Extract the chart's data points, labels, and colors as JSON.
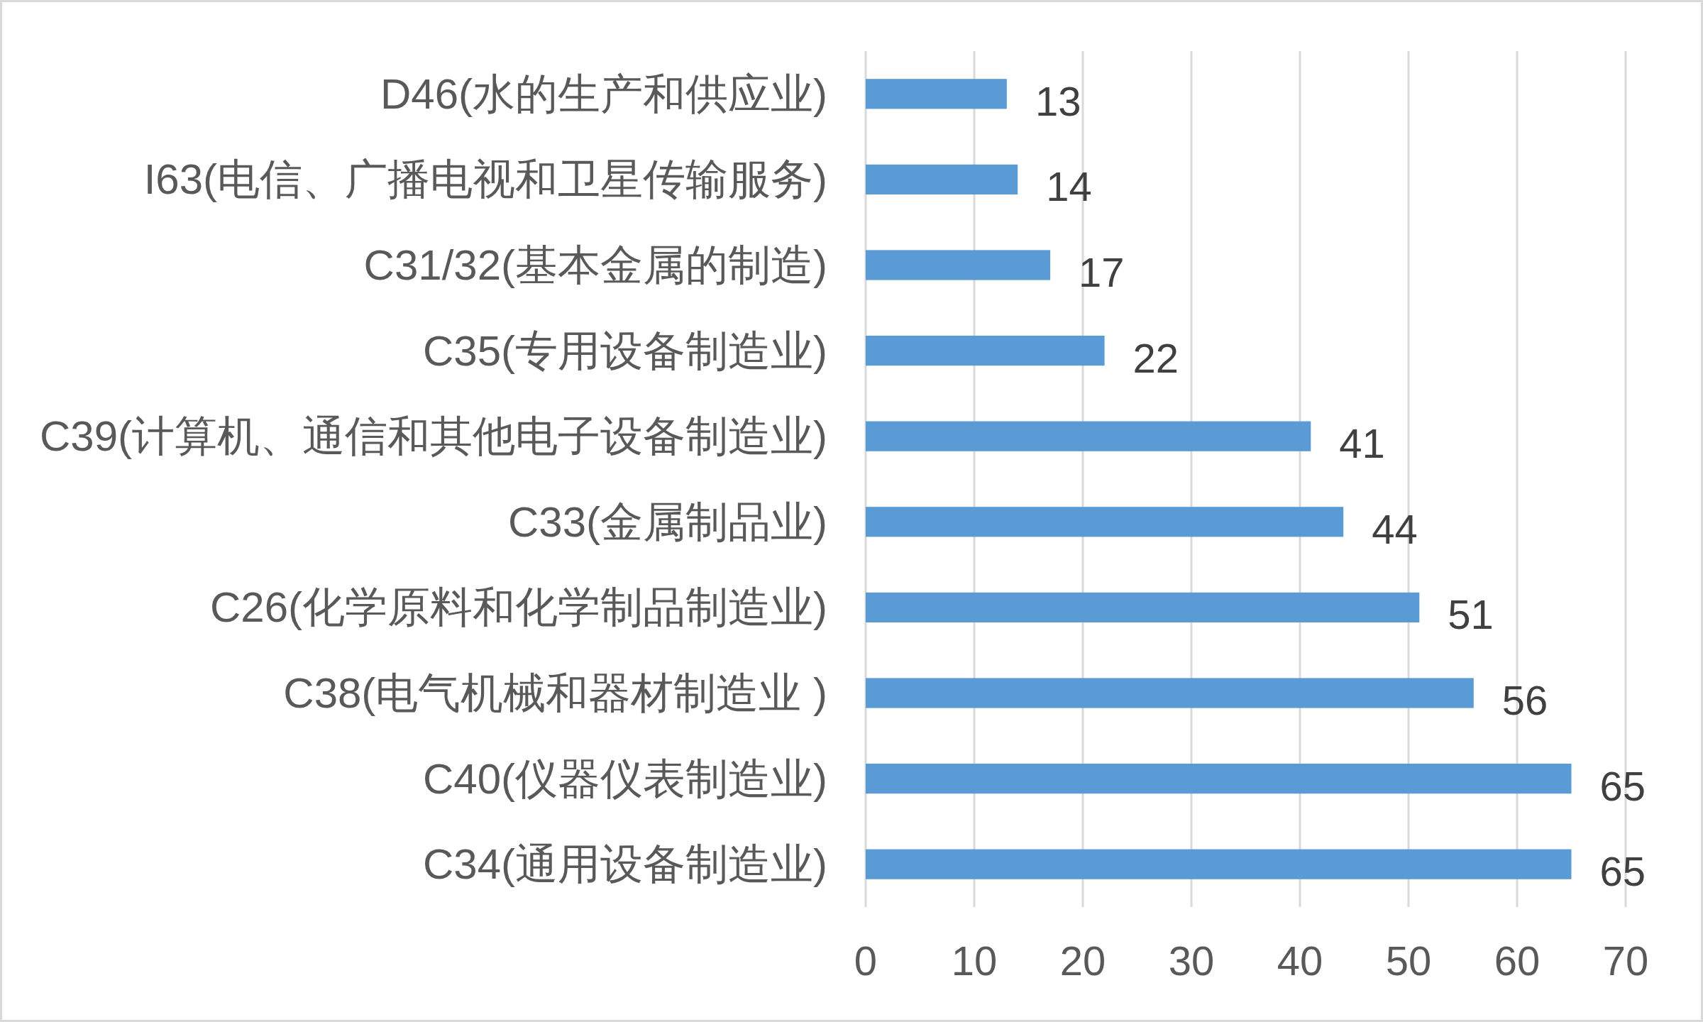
{
  "chart_data": {
    "type": "bar",
    "orientation": "horizontal",
    "categories": [
      "D46(水的生产和供应业)",
      "I63(电信、广播电视和卫星传输服务)",
      "C31/32(基本金属的制造)",
      "C35(专用设备制造业)",
      "C39(计算机、通信和其他电子设备制造业)",
      "C33(金属制品业)",
      "C26(化学原料和化学制品制造业)",
      "C38(电气机械和器材制造业 )",
      "C40(仪器仪表制造业)",
      "C34(通用设备制造业)"
    ],
    "values": [
      13,
      14,
      17,
      22,
      41,
      44,
      51,
      56,
      65,
      65
    ],
    "color": "#5b9bd5",
    "xlim": [
      0,
      70
    ],
    "xticks": [
      0,
      10,
      20,
      30,
      40,
      50,
      60,
      70
    ],
    "grid": "x",
    "data_labels": true
  }
}
